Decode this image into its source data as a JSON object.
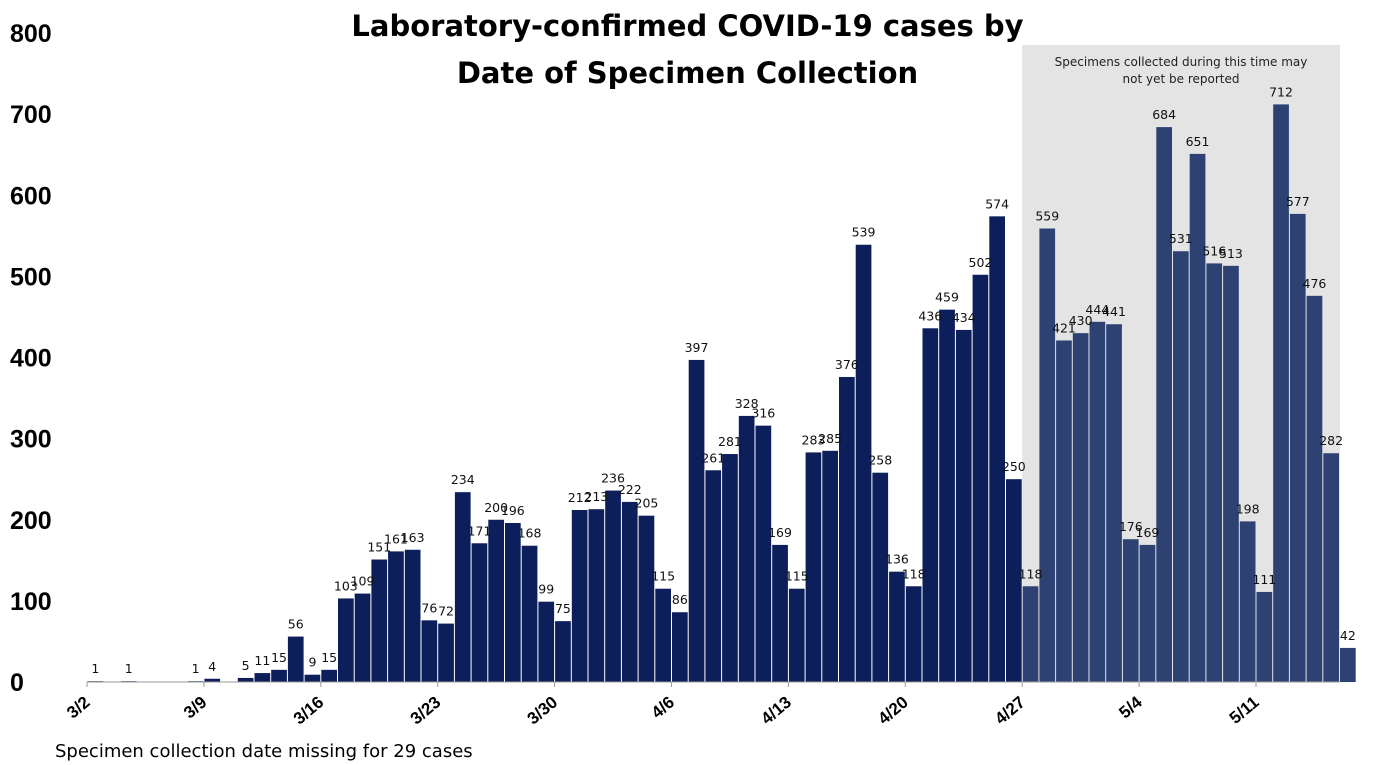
{
  "chart_data": {
    "type": "bar",
    "title_lines": [
      "Laboratory-confirmed COVID-19 cases by",
      "Date of Specimen Collection"
    ],
    "annotation_lines": [
      "Specimens collected during this time may",
      "not yet be reported"
    ],
    "footnote": "Specimen  collection date missing  for 29 cases",
    "ylim": [
      0,
      800
    ],
    "y_ticks": [
      "0",
      "100",
      "200",
      "300",
      "400",
      "500",
      "600",
      "700",
      "800"
    ],
    "grid": false,
    "x_tick_labels": [
      {
        "label": "3/2",
        "index": 0
      },
      {
        "label": "3/9",
        "index": 7
      },
      {
        "label": "3/16",
        "index": 14
      },
      {
        "label": "3/23",
        "index": 21
      },
      {
        "label": "3/30",
        "index": 28
      },
      {
        "label": "4/6",
        "index": 35
      },
      {
        "label": "4/13",
        "index": 42
      },
      {
        "label": "4/20",
        "index": 49
      },
      {
        "label": "4/27",
        "index": 56
      },
      {
        "label": "5/4",
        "index": 63
      },
      {
        "label": "5/11",
        "index": 70
      }
    ],
    "values": [
      1,
      null,
      1,
      null,
      null,
      null,
      1,
      4,
      null,
      5,
      11,
      15,
      56,
      9,
      15,
      103,
      109,
      151,
      161,
      163,
      76,
      72,
      234,
      171,
      200,
      196,
      168,
      99,
      75,
      212,
      213,
      236,
      222,
      205,
      115,
      86,
      397,
      261,
      281,
      328,
      316,
      169,
      115,
      283,
      285,
      376,
      539,
      258,
      136,
      118,
      436,
      459,
      434,
      502,
      574,
      250,
      118,
      559,
      421,
      430,
      444,
      441,
      176,
      169,
      684,
      531,
      651,
      516,
      513,
      198,
      111,
      712,
      577,
      476,
      282,
      42
    ],
    "shaded_from_index": 56,
    "colors": {
      "bar": "#0c1f5a",
      "bar_shaded": "#2d4273",
      "shade": "#e4e4e4"
    }
  }
}
